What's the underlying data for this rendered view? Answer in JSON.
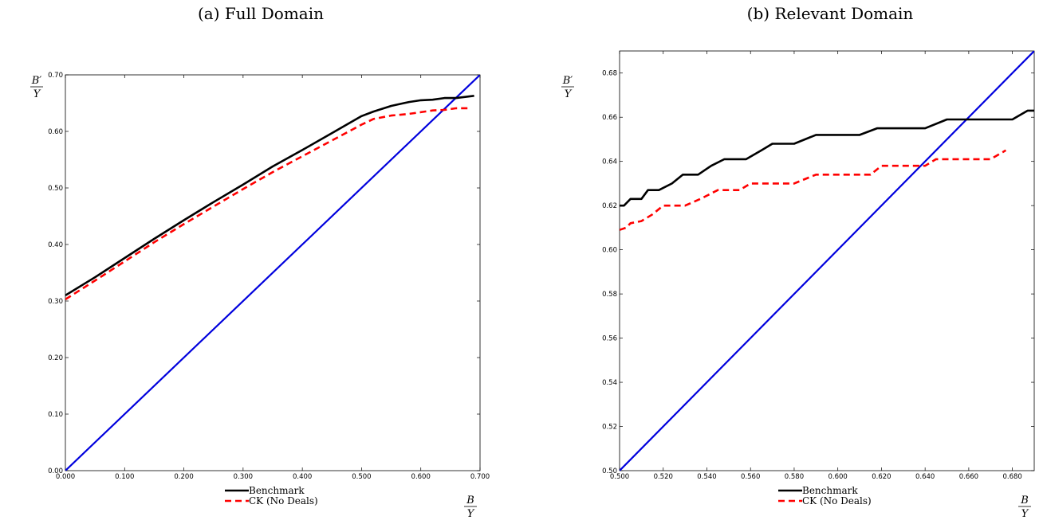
{
  "chart_data": [
    {
      "type": "line",
      "title": "(a) Full Domain",
      "xlabel": "B/Y",
      "ylabel": "B'/Y",
      "xlim": [
        0.0,
        0.7
      ],
      "ylim": [
        0.0,
        0.7
      ],
      "xticks": [
        "0.000",
        "0.100",
        "0.200",
        "0.300",
        "0.400",
        "0.500",
        "0.600",
        "0.700"
      ],
      "yticks": [
        "0.00",
        "0.10",
        "0.20",
        "0.30",
        "0.40",
        "0.50",
        "0.60",
        "0.70"
      ],
      "legend_position": "bottom-center",
      "series": [
        {
          "name": "Benchmark",
          "color": "#000000",
          "style": "solid",
          "x": [
            0.0,
            0.05,
            0.1,
            0.15,
            0.2,
            0.25,
            0.3,
            0.35,
            0.4,
            0.45,
            0.5,
            0.52,
            0.55,
            0.58,
            0.6,
            0.62,
            0.64,
            0.66,
            0.69
          ],
          "y": [
            0.31,
            0.342,
            0.376,
            0.41,
            0.443,
            0.475,
            0.506,
            0.538,
            0.567,
            0.597,
            0.627,
            0.635,
            0.645,
            0.652,
            0.655,
            0.656,
            0.659,
            0.659,
            0.663
          ]
        },
        {
          "name": "CK (No Deals)",
          "color": "#ff0000",
          "style": "dashed",
          "x": [
            0.0,
            0.05,
            0.1,
            0.15,
            0.2,
            0.25,
            0.3,
            0.35,
            0.4,
            0.45,
            0.5,
            0.52,
            0.55,
            0.58,
            0.6,
            0.62,
            0.64,
            0.66,
            0.68
          ],
          "y": [
            0.303,
            0.336,
            0.37,
            0.404,
            0.436,
            0.467,
            0.498,
            0.528,
            0.556,
            0.584,
            0.612,
            0.622,
            0.628,
            0.631,
            0.634,
            0.637,
            0.638,
            0.641,
            0.641
          ]
        },
        {
          "color": "#0000dd",
          "style": "solid",
          "x": [
            0.0,
            0.7
          ],
          "y": [
            0.0,
            0.7
          ]
        }
      ]
    },
    {
      "type": "line",
      "title": "(b) Relevant Domain",
      "xlabel": "B/Y",
      "ylabel": "B'/Y",
      "xlim": [
        0.5,
        0.69
      ],
      "ylim": [
        0.5,
        0.69
      ],
      "xticks": [
        "0.500",
        "0.520",
        "0.540",
        "0.560",
        "0.580",
        "0.600",
        "0.620",
        "0.640",
        "0.660",
        "0.680"
      ],
      "yticks": [
        "0.50",
        "0.52",
        "0.54",
        "0.56",
        "0.58",
        "0.60",
        "0.62",
        "0.64",
        "0.66",
        "0.68"
      ],
      "legend_position": "bottom-center",
      "series": [
        {
          "name": "Benchmark",
          "color": "#000000",
          "style": "solid",
          "x": [
            0.5,
            0.502,
            0.505,
            0.51,
            0.513,
            0.518,
            0.524,
            0.529,
            0.536,
            0.542,
            0.548,
            0.558,
            0.565,
            0.57,
            0.58,
            0.59,
            0.6,
            0.61,
            0.618,
            0.63,
            0.64,
            0.65,
            0.66,
            0.67,
            0.68,
            0.687,
            0.69
          ],
          "y": [
            0.62,
            0.62,
            0.623,
            0.623,
            0.627,
            0.627,
            0.63,
            0.634,
            0.634,
            0.638,
            0.641,
            0.641,
            0.645,
            0.648,
            0.648,
            0.652,
            0.652,
            0.652,
            0.655,
            0.655,
            0.655,
            0.659,
            0.659,
            0.659,
            0.659,
            0.663,
            0.663
          ]
        },
        {
          "name": "CK (No Deals)",
          "color": "#ff0000",
          "style": "dashed",
          "x": [
            0.5,
            0.503,
            0.505,
            0.51,
            0.515,
            0.52,
            0.525,
            0.53,
            0.537,
            0.545,
            0.555,
            0.56,
            0.57,
            0.58,
            0.59,
            0.6,
            0.61,
            0.615,
            0.62,
            0.63,
            0.64,
            0.645,
            0.65,
            0.66,
            0.67,
            0.677
          ],
          "y": [
            0.609,
            0.61,
            0.612,
            0.613,
            0.616,
            0.62,
            0.62,
            0.62,
            0.623,
            0.627,
            0.627,
            0.63,
            0.63,
            0.63,
            0.634,
            0.634,
            0.634,
            0.634,
            0.638,
            0.638,
            0.638,
            0.641,
            0.641,
            0.641,
            0.641,
            0.645
          ]
        },
        {
          "color": "#0000dd",
          "style": "solid",
          "x": [
            0.5,
            0.69
          ],
          "y": [
            0.5,
            0.69
          ]
        }
      ]
    }
  ]
}
